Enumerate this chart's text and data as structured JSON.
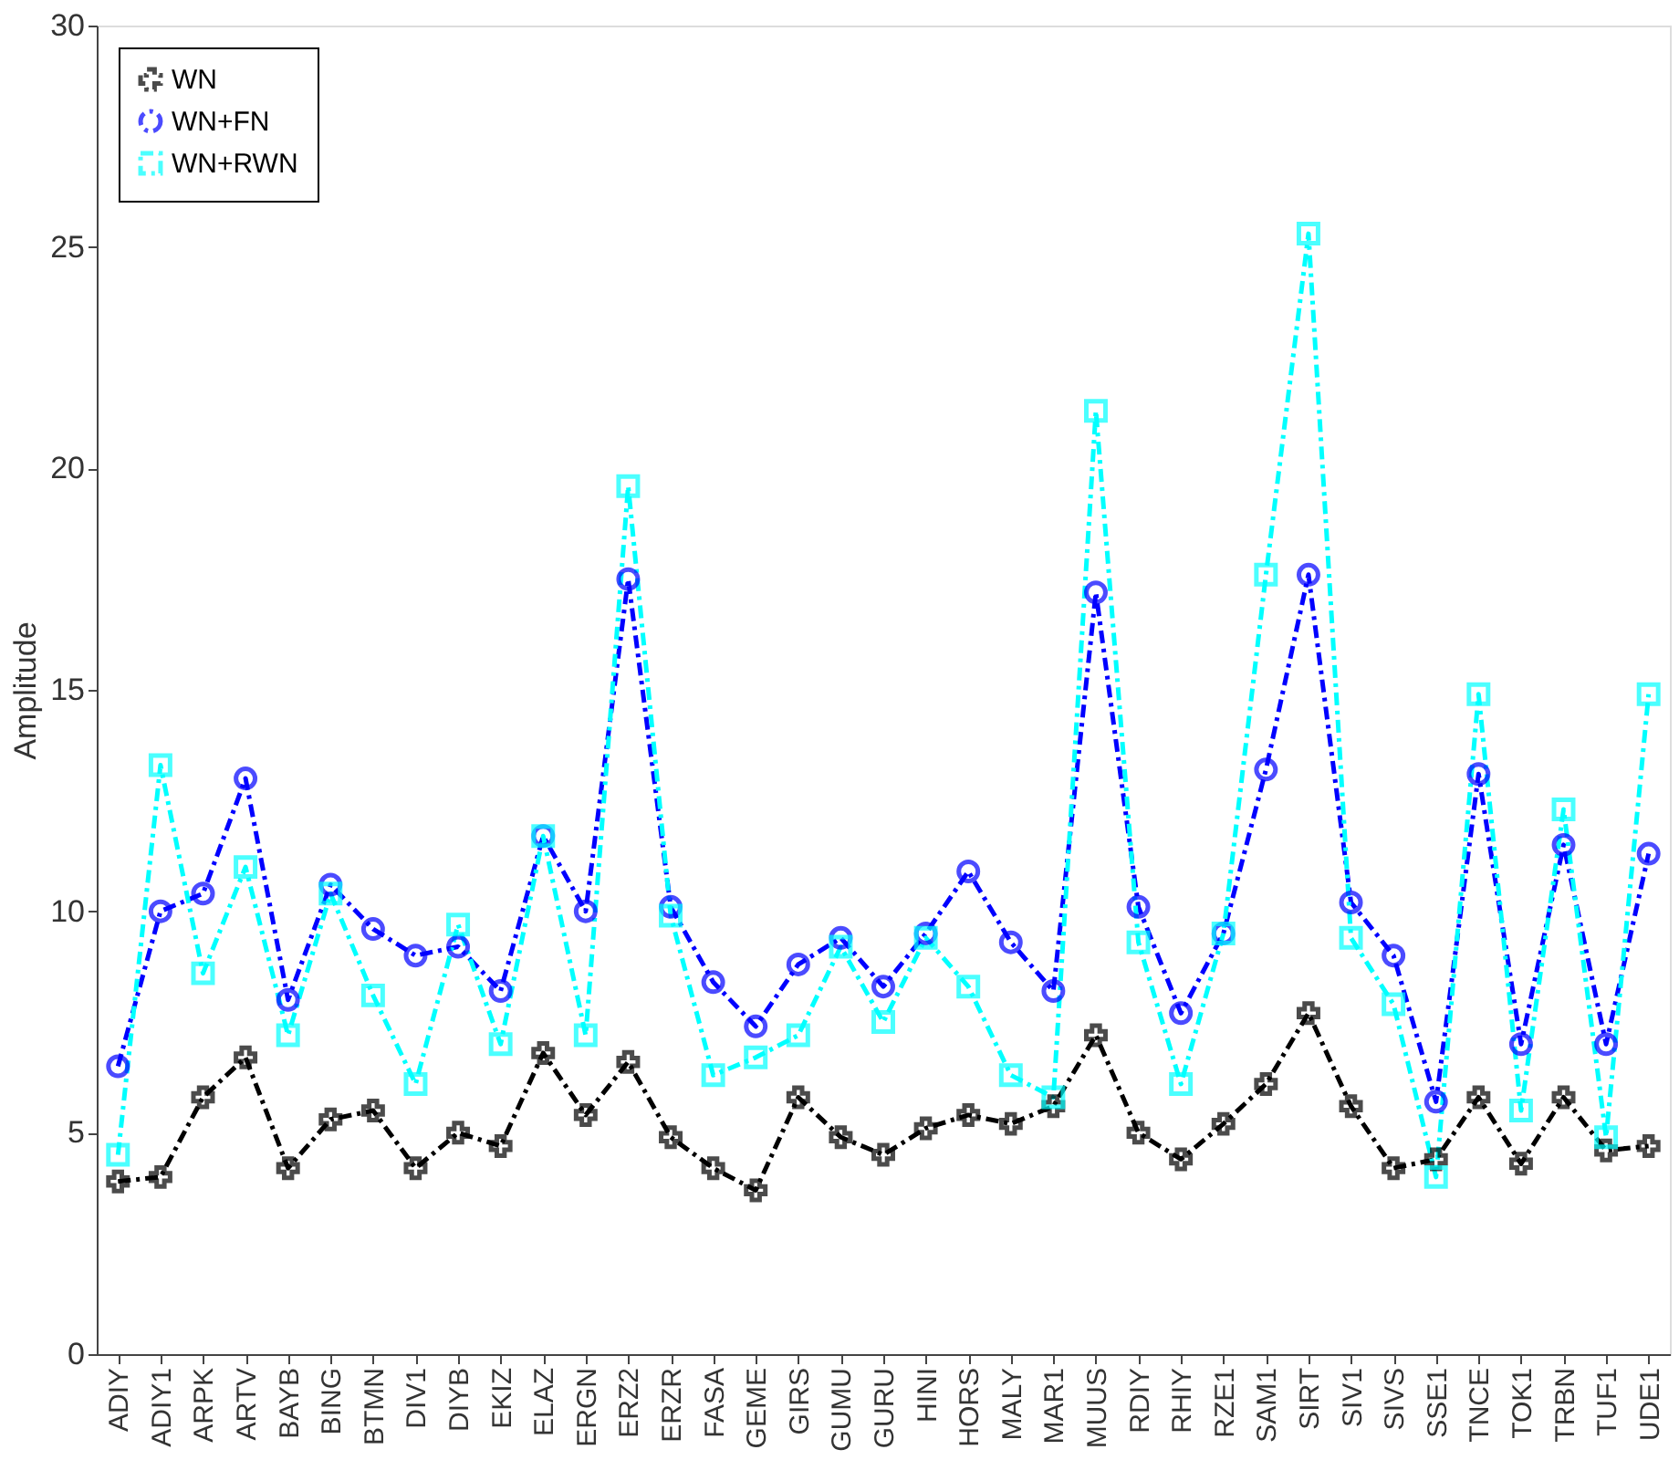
{
  "chart_data": {
    "type": "line",
    "ylabel": "Amplitude",
    "categories": [
      "ADIY",
      "ADIY1",
      "ARPK",
      "ARTV",
      "BAYB",
      "BING",
      "BTMN",
      "DIV1",
      "DIYB",
      "EKIZ",
      "ELAZ",
      "ERGN",
      "ERZ2",
      "ERZR",
      "FASA",
      "GEME",
      "GIRS",
      "GUMU",
      "GURU",
      "HINI",
      "HORS",
      "MALY",
      "MAR1",
      "MUUS",
      "RDIY",
      "RHIY",
      "RZE1",
      "SAM1",
      "SIRT",
      "SIV1",
      "SIVS",
      "SSE1",
      "TNCE",
      "TOK1",
      "TRBN",
      "TUF1",
      "UDE1"
    ],
    "series": [
      {
        "name": "WN",
        "color": "#000000",
        "marker": "cross",
        "line_style": "dashed",
        "values": [
          3.9,
          4.0,
          5.8,
          6.7,
          4.2,
          5.3,
          5.5,
          4.2,
          5.0,
          4.7,
          6.8,
          5.4,
          6.6,
          4.9,
          4.2,
          3.7,
          5.8,
          4.9,
          4.5,
          5.1,
          5.4,
          5.2,
          5.6,
          7.2,
          5.0,
          4.4,
          5.2,
          6.1,
          7.7,
          5.6,
          4.2,
          4.4,
          5.8,
          4.3,
          5.8,
          4.6,
          4.7
        ]
      },
      {
        "name": "WN+FN",
        "color": "#0000ff",
        "marker": "circle",
        "line_style": "dashed",
        "values": [
          6.5,
          10.0,
          10.4,
          13.0,
          8.0,
          10.6,
          9.6,
          9.0,
          9.2,
          8.2,
          11.7,
          10.0,
          17.5,
          10.1,
          8.4,
          7.4,
          8.8,
          9.4,
          8.3,
          9.5,
          10.9,
          9.3,
          8.2,
          17.2,
          10.1,
          7.7,
          9.5,
          13.2,
          17.6,
          10.2,
          9.0,
          5.7,
          13.1,
          7.0,
          11.5,
          7.0,
          11.3
        ]
      },
      {
        "name": "WN+RWN",
        "color": "#00ffff",
        "marker": "square",
        "line_style": "dashed",
        "values": [
          4.5,
          13.3,
          8.6,
          11.0,
          7.2,
          10.4,
          8.1,
          6.1,
          9.7,
          7.0,
          11.7,
          7.2,
          19.6,
          9.9,
          6.3,
          6.7,
          7.2,
          9.2,
          7.5,
          9.4,
          8.3,
          6.3,
          5.8,
          21.3,
          9.3,
          6.1,
          9.5,
          17.6,
          25.3,
          9.4,
          7.9,
          4.0,
          14.9,
          5.5,
          12.3,
          4.9,
          14.9
        ]
      }
    ],
    "ylim": [
      0,
      30
    ],
    "yticks": [
      0,
      5,
      10,
      15,
      20,
      25,
      30
    ],
    "grid": false,
    "legend": "top left"
  }
}
